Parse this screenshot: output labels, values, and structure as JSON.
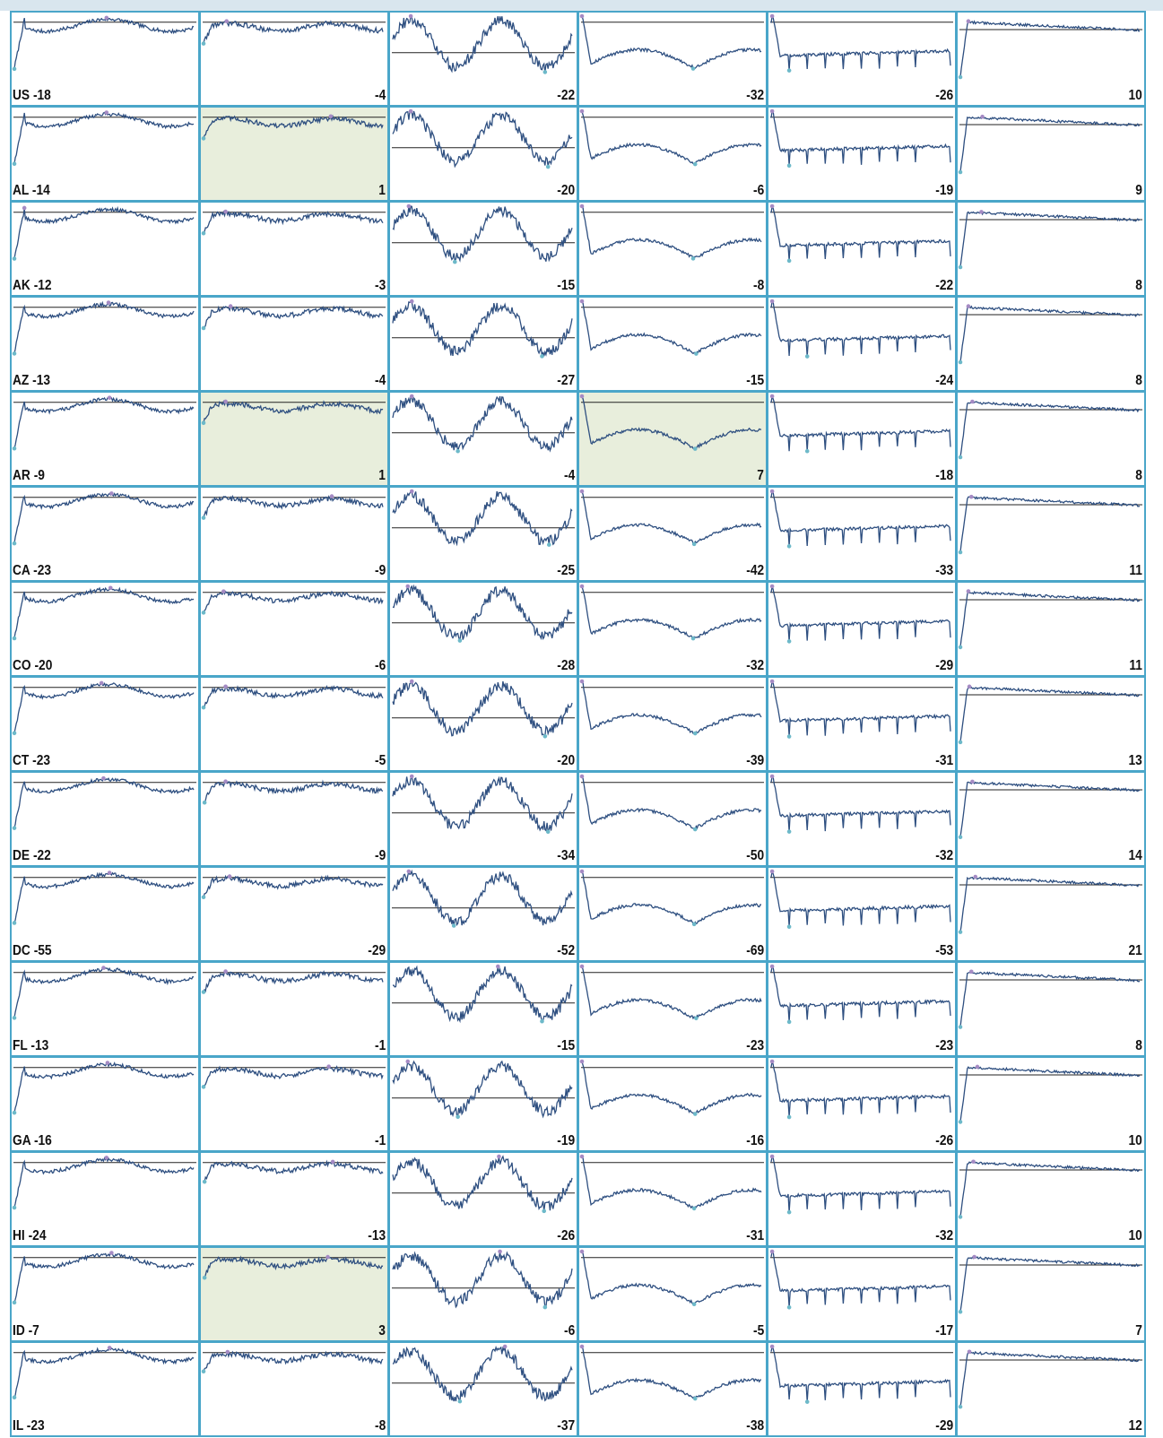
{
  "chart_data": {
    "type": "line",
    "layout": "small-multiples",
    "columns": 6,
    "colors": {
      "line": "#2e4f80",
      "baseline": "#222222",
      "min_marker": "#6db9c9",
      "max_marker": "#a58bc4",
      "highlight": "#e8eedc",
      "border": "#4aa6c9"
    },
    "rows": [
      {
        "state": "US",
        "values": [
          -18,
          -4,
          -22,
          -32,
          -26,
          10
        ]
      },
      {
        "state": "AL",
        "values": [
          -14,
          1,
          -20,
          -6,
          -19,
          9
        ]
      },
      {
        "state": "AK",
        "values": [
          -12,
          -3,
          -15,
          -8,
          -22,
          8
        ]
      },
      {
        "state": "AZ",
        "values": [
          -13,
          -4,
          -27,
          -15,
          -24,
          8
        ]
      },
      {
        "state": "AR",
        "values": [
          -9,
          1,
          -4,
          7,
          -18,
          8
        ]
      },
      {
        "state": "CA",
        "values": [
          -23,
          -9,
          -25,
          -42,
          -33,
          11
        ]
      },
      {
        "state": "CO",
        "values": [
          -20,
          -6,
          -28,
          -32,
          -29,
          11
        ]
      },
      {
        "state": "CT",
        "values": [
          -23,
          -5,
          -20,
          -39,
          -31,
          13
        ]
      },
      {
        "state": "DE",
        "values": [
          -22,
          -9,
          -34,
          -50,
          -32,
          14
        ]
      },
      {
        "state": "DC",
        "values": [
          -55,
          -29,
          -52,
          -69,
          -53,
          21
        ]
      },
      {
        "state": "FL",
        "values": [
          -13,
          -1,
          -15,
          -23,
          -23,
          8
        ]
      },
      {
        "state": "GA",
        "values": [
          -16,
          -1,
          -19,
          -16,
          -26,
          10
        ]
      },
      {
        "state": "HI",
        "values": [
          -24,
          -13,
          -26,
          -31,
          -32,
          10
        ]
      },
      {
        "state": "ID",
        "values": [
          -7,
          3,
          -6,
          -5,
          -17,
          7
        ]
      },
      {
        "state": "IL",
        "values": [
          -23,
          -8,
          -37,
          -38,
          -29,
          12
        ]
      }
    ]
  }
}
